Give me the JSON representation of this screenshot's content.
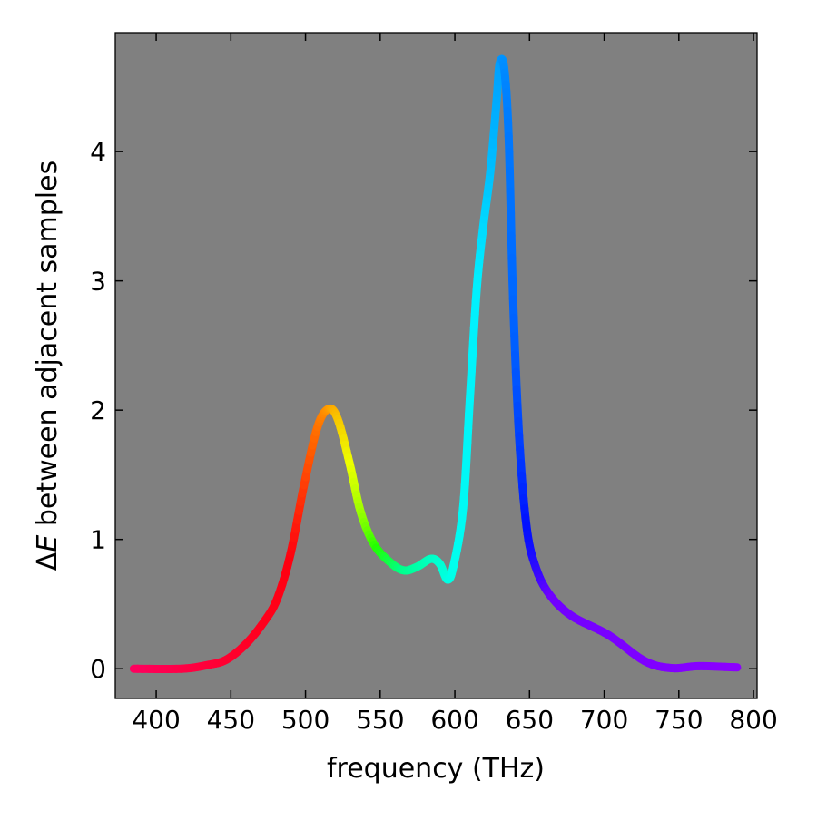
{
  "chart_data": {
    "type": "line",
    "title": "",
    "xlabel": "frequency (THz)",
    "ylabel_prefix": "Δ",
    "ylabel_var": "E",
    "ylabel_rest": " between adjacent samples",
    "xlim": [
      372.6,
      802.4
    ],
    "ylim": [
      -0.23,
      4.92
    ],
    "xticks": [
      400,
      450,
      500,
      550,
      600,
      650,
      700,
      750,
      800
    ],
    "yticks": [
      0,
      1,
      2,
      3,
      4
    ],
    "grid": false,
    "background": "#808080",
    "x": [
      385,
      417,
      435,
      447,
      460,
      472,
      481,
      490,
      499,
      508,
      515.5,
      521.6,
      529.5,
      537,
      546,
      557,
      566,
      575,
      584,
      590,
      595,
      599,
      605.5,
      610,
      614.6,
      619,
      623.7,
      628,
      630,
      633,
      636,
      639,
      643,
      648,
      654,
      663,
      678,
      703,
      727,
      745,
      763.5,
      789
    ],
    "y": [
      0,
      0,
      0.03,
      0.07,
      0.19,
      0.36,
      0.54,
      0.89,
      1.42,
      1.87,
      2.01,
      1.93,
      1.59,
      1.21,
      0.96,
      0.82,
      0.76,
      0.79,
      0.85,
      0.81,
      0.69,
      0.79,
      1.24,
      2.08,
      2.93,
      3.42,
      3.84,
      4.4,
      4.68,
      4.65,
      4.12,
      2.86,
      1.8,
      1.1,
      0.79,
      0.58,
      0.41,
      0.26,
      0.06,
      0.005,
      0.02,
      0.01
    ],
    "color_stops": [
      {
        "freq": 385,
        "color": "#ff0060"
      },
      {
        "freq": 490,
        "color": "#ff0010"
      },
      {
        "freq": 505,
        "color": "#ff6000"
      },
      {
        "freq": 516,
        "color": "#ff9900"
      },
      {
        "freq": 530,
        "color": "#eeff00"
      },
      {
        "freq": 548,
        "color": "#22ff00"
      },
      {
        "freq": 565,
        "color": "#00ff88"
      },
      {
        "freq": 600,
        "color": "#00ffee"
      },
      {
        "freq": 615,
        "color": "#00f0ff"
      },
      {
        "freq": 630,
        "color": "#00a0ff"
      },
      {
        "freq": 640,
        "color": "#0060ff"
      },
      {
        "freq": 648,
        "color": "#0010ff"
      },
      {
        "freq": 665,
        "color": "#7000ff"
      },
      {
        "freq": 790,
        "color": "#8c00ff"
      }
    ]
  }
}
